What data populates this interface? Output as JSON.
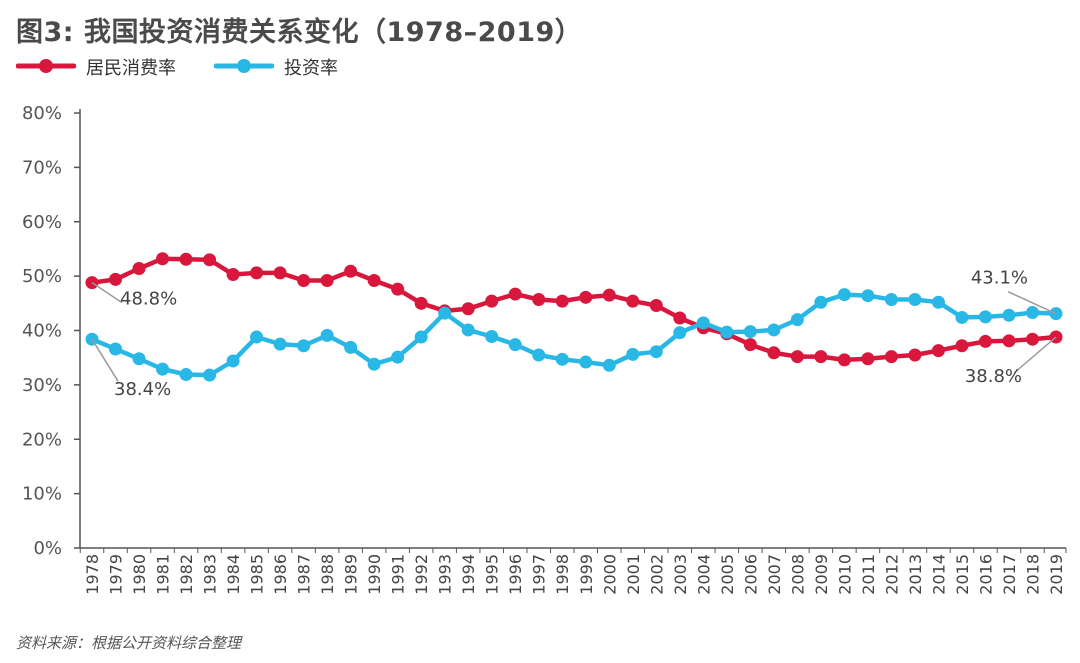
{
  "title": "图3: 我国投资消费关系变化（1978–2019）",
  "source": "资料来源：根据公开资料综合整理",
  "colors": {
    "consumption": "#d9173d",
    "investment": "#29b8e5",
    "axis": "#555555",
    "annotation": "#9a9a9a"
  },
  "chart_data": {
    "type": "line",
    "title": "我国投资消费关系变化（1978–2019）",
    "xlabel": "",
    "ylabel": "",
    "ylim": [
      0,
      80
    ],
    "yticks": [
      "0%",
      "10%",
      "20%",
      "30%",
      "40%",
      "50%",
      "60%",
      "70%",
      "80%"
    ],
    "categories": [
      "1978",
      "1979",
      "1980",
      "1981",
      "1982",
      "1983",
      "1984",
      "1985",
      "1986",
      "1987",
      "1988",
      "1989",
      "1990",
      "1991",
      "1992",
      "1993",
      "1994",
      "1995",
      "1996",
      "1997",
      "1998",
      "1999",
      "2000",
      "2001",
      "2002",
      "2003",
      "2004",
      "2005",
      "2006",
      "2007",
      "2008",
      "2009",
      "2010",
      "2011",
      "2012",
      "2013",
      "2014",
      "2015",
      "2016",
      "2017",
      "2018",
      "2019"
    ],
    "series": [
      {
        "name": "居民消费率",
        "key": "consumption",
        "values": [
          48.8,
          49.4,
          51.4,
          53.2,
          53.1,
          53.0,
          50.3,
          50.6,
          50.6,
          49.2,
          49.2,
          50.9,
          49.2,
          47.6,
          45.0,
          43.6,
          44.0,
          45.4,
          46.7,
          45.7,
          45.4,
          46.1,
          46.5,
          45.4,
          44.6,
          42.3,
          40.5,
          39.4,
          37.4,
          35.9,
          35.2,
          35.2,
          34.6,
          34.8,
          35.2,
          35.5,
          36.3,
          37.2,
          38.0,
          38.1,
          38.4,
          38.8
        ]
      },
      {
        "name": "投资率",
        "key": "investment",
        "values": [
          38.4,
          36.6,
          34.8,
          32.9,
          31.9,
          31.8,
          34.4,
          38.8,
          37.5,
          37.2,
          39.1,
          36.9,
          33.8,
          35.1,
          38.8,
          43.2,
          40.1,
          38.9,
          37.4,
          35.5,
          34.7,
          34.2,
          33.6,
          35.6,
          36.1,
          39.6,
          41.4,
          39.7,
          39.8,
          40.1,
          42.0,
          45.2,
          46.6,
          46.4,
          45.7,
          45.7,
          45.2,
          42.4,
          42.5,
          42.8,
          43.3,
          43.1
        ]
      }
    ],
    "legend": {
      "placement": "top-left"
    },
    "annotations": [
      {
        "text": "48.8%",
        "series": "consumption",
        "index": 0
      },
      {
        "text": "38.4%",
        "series": "investment",
        "index": 0
      },
      {
        "text": "43.1%",
        "series": "investment",
        "index": 41
      },
      {
        "text": "38.8%",
        "series": "consumption",
        "index": 41
      }
    ]
  }
}
